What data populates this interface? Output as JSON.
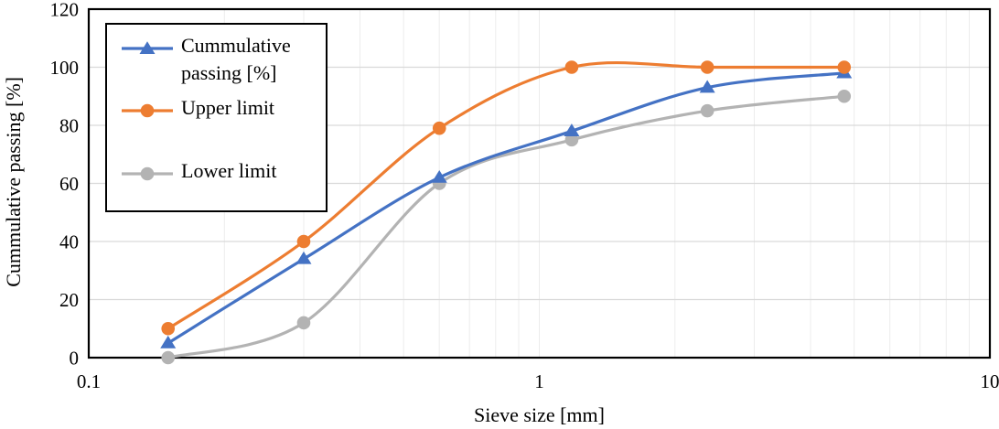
{
  "chart_data": {
    "type": "line",
    "title": "",
    "xlabel": "Sieve size [mm]",
    "ylabel": "Cummulative passing [%]",
    "x_scale": "log",
    "xlim": [
      0.1,
      10
    ],
    "ylim": [
      0,
      120
    ],
    "grid": {
      "horizontal": true,
      "vertical_minor": true
    },
    "legend_position": "top-left",
    "smoothed": true,
    "x": [
      0.15,
      0.3,
      0.6,
      1.18,
      2.36,
      4.75
    ],
    "series": [
      {
        "name": "Cummulative passing [%]",
        "marker": "triangle",
        "color": "#4472C4",
        "values": [
          5,
          34,
          62,
          78,
          93,
          98
        ]
      },
      {
        "name": "Upper limit",
        "marker": "circle",
        "color": "#ED7D31",
        "values": [
          10,
          40,
          79,
          100,
          100,
          100
        ]
      },
      {
        "name": "Lower limit",
        "marker": "circle",
        "color": "#B3B3B3",
        "values": [
          0,
          12,
          60,
          75,
          85,
          90
        ]
      }
    ],
    "x_ticks": [
      {
        "value": 0.1,
        "label": "0.1"
      },
      {
        "value": 1,
        "label": "1"
      },
      {
        "value": 10,
        "label": "10"
      }
    ],
    "y_ticks": [
      {
        "value": 0,
        "label": "0"
      },
      {
        "value": 20,
        "label": "20"
      },
      {
        "value": 40,
        "label": "40"
      },
      {
        "value": 60,
        "label": "60"
      },
      {
        "value": 80,
        "label": "80"
      },
      {
        "value": 100,
        "label": "100"
      },
      {
        "value": 120,
        "label": "120"
      }
    ],
    "minor_x_gridlines": [
      0.2,
      0.3,
      0.4,
      0.5,
      0.6,
      0.7,
      0.8,
      0.9,
      1,
      2,
      3,
      4,
      5,
      6,
      7,
      8,
      9
    ],
    "colors": {
      "horizontal_grid": "#D9D9D9",
      "vertical_grid": "#ECECEC",
      "plot_border": "#000000",
      "background": "#FFFFFF"
    }
  }
}
